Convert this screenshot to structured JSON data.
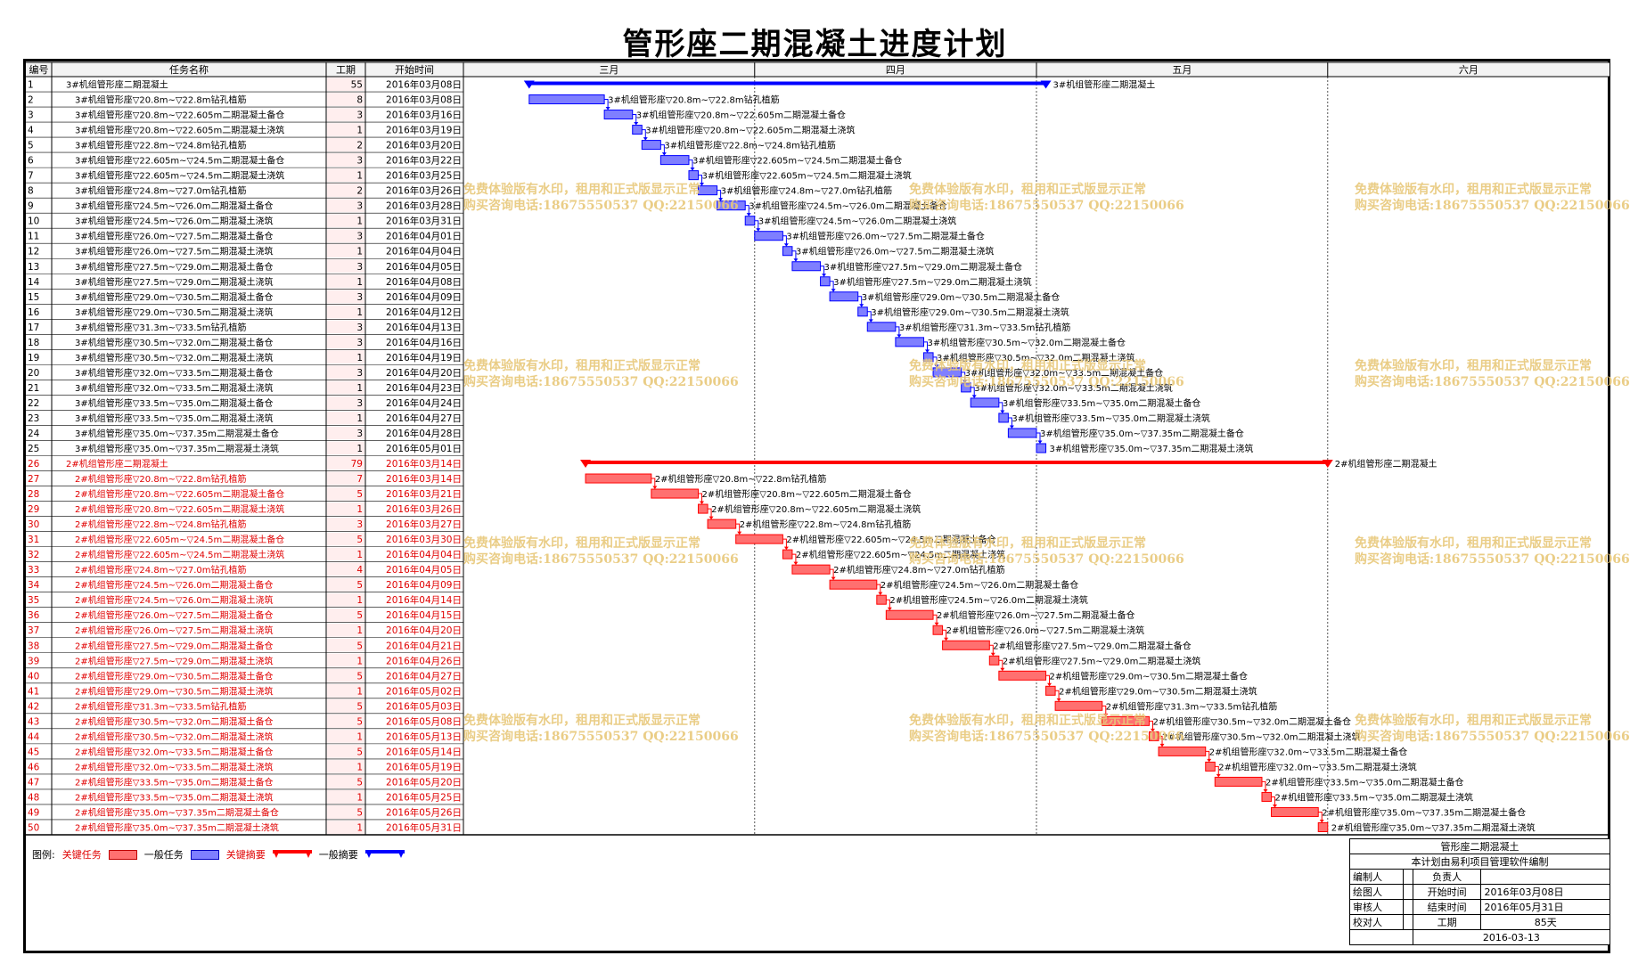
{
  "title": "管形座二期混凝土进度计划",
  "columns": {
    "id": "编号",
    "name": "任务名称",
    "duration": "工期",
    "start": "开始时间"
  },
  "months": [
    "三月",
    "四月",
    "五月",
    "六月"
  ],
  "colors": {
    "critical": "#ff0000",
    "critical_fill": "#ff7070",
    "normal": "#0000ff",
    "normal_fill": "#7f7fff",
    "watermark": "#e8c87a"
  },
  "chart_data": {
    "type": "gantt",
    "title": "管形座二期混凝土进度计划",
    "x_range": [
      "2016-03-01",
      "2016-06-30"
    ],
    "tasks": [
      {
        "id": "1",
        "name": "3#机组管形座二期混凝土",
        "duration": 55,
        "start": "2016年03月08日",
        "s": "2016-03-08",
        "type": "summary",
        "critical": false
      },
      {
        "id": "2",
        "name": "3#机组管形座▽20.8m~▽22.8m钻孔植筋",
        "duration": 8,
        "start": "2016年03月08日",
        "s": "2016-03-08",
        "type": "task",
        "critical": false
      },
      {
        "id": "3",
        "name": "3#机组管形座▽20.8m~▽22.605m二期混凝土备仓",
        "duration": 3,
        "start": "2016年03月16日",
        "s": "2016-03-16",
        "type": "task",
        "critical": false
      },
      {
        "id": "4",
        "name": "3#机组管形座▽20.8m~▽22.605m二期混凝土浇筑",
        "duration": 1,
        "start": "2016年03月19日",
        "s": "2016-03-19",
        "type": "task",
        "critical": false
      },
      {
        "id": "5",
        "name": "3#机组管形座▽22.8m~▽24.8m钻孔植筋",
        "duration": 2,
        "start": "2016年03月20日",
        "s": "2016-03-20",
        "type": "task",
        "critical": false
      },
      {
        "id": "6",
        "name": "3#机组管形座▽22.605m~▽24.5m二期混凝土备仓",
        "duration": 3,
        "start": "2016年03月22日",
        "s": "2016-03-22",
        "type": "task",
        "critical": false
      },
      {
        "id": "7",
        "name": "3#机组管形座▽22.605m~▽24.5m二期混凝土浇筑",
        "duration": 1,
        "start": "2016年03月25日",
        "s": "2016-03-25",
        "type": "task",
        "critical": false
      },
      {
        "id": "8",
        "name": "3#机组管形座▽24.8m~▽27.0m钻孔植筋",
        "duration": 2,
        "start": "2016年03月26日",
        "s": "2016-03-26",
        "type": "task",
        "critical": false
      },
      {
        "id": "9",
        "name": "3#机组管形座▽24.5m~▽26.0m二期混凝土备仓",
        "duration": 3,
        "start": "2016年03月28日",
        "s": "2016-03-28",
        "type": "task",
        "critical": false
      },
      {
        "id": "10",
        "name": "3#机组管形座▽24.5m~▽26.0m二期混凝土浇筑",
        "duration": 1,
        "start": "2016年03月31日",
        "s": "2016-03-31",
        "type": "task",
        "critical": false
      },
      {
        "id": "11",
        "name": "3#机组管形座▽26.0m~▽27.5m二期混凝土备仓",
        "duration": 3,
        "start": "2016年04月01日",
        "s": "2016-04-01",
        "type": "task",
        "critical": false
      },
      {
        "id": "12",
        "name": "3#机组管形座▽26.0m~▽27.5m二期混凝土浇筑",
        "duration": 1,
        "start": "2016年04月04日",
        "s": "2016-04-04",
        "type": "task",
        "critical": false
      },
      {
        "id": "13",
        "name": "3#机组管形座▽27.5m~▽29.0m二期混凝土备仓",
        "duration": 3,
        "start": "2016年04月05日",
        "s": "2016-04-05",
        "type": "task",
        "critical": false
      },
      {
        "id": "14",
        "name": "3#机组管形座▽27.5m~▽29.0m二期混凝土浇筑",
        "duration": 1,
        "start": "2016年04月08日",
        "s": "2016-04-08",
        "type": "task",
        "critical": false
      },
      {
        "id": "15",
        "name": "3#机组管形座▽29.0m~▽30.5m二期混凝土备仓",
        "duration": 3,
        "start": "2016年04月09日",
        "s": "2016-04-09",
        "type": "task",
        "critical": false
      },
      {
        "id": "16",
        "name": "3#机组管形座▽29.0m~▽30.5m二期混凝土浇筑",
        "duration": 1,
        "start": "2016年04月12日",
        "s": "2016-04-12",
        "type": "task",
        "critical": false
      },
      {
        "id": "17",
        "name": "3#机组管形座▽31.3m~▽33.5m钻孔植筋",
        "duration": 3,
        "start": "2016年04月13日",
        "s": "2016-04-13",
        "type": "task",
        "critical": false
      },
      {
        "id": "18",
        "name": "3#机组管形座▽30.5m~▽32.0m二期混凝土备仓",
        "duration": 3,
        "start": "2016年04月16日",
        "s": "2016-04-16",
        "type": "task",
        "critical": false
      },
      {
        "id": "19",
        "name": "3#机组管形座▽30.5m~▽32.0m二期混凝土浇筑",
        "duration": 1,
        "start": "2016年04月19日",
        "s": "2016-04-19",
        "type": "task",
        "critical": false
      },
      {
        "id": "20",
        "name": "3#机组管形座▽32.0m~▽33.5m二期混凝土备仓",
        "duration": 3,
        "start": "2016年04月20日",
        "s": "2016-04-20",
        "type": "task",
        "critical": false
      },
      {
        "id": "21",
        "name": "3#机组管形座▽32.0m~▽33.5m二期混凝土浇筑",
        "duration": 1,
        "start": "2016年04月23日",
        "s": "2016-04-23",
        "type": "task",
        "critical": false
      },
      {
        "id": "22",
        "name": "3#机组管形座▽33.5m~▽35.0m二期混凝土备仓",
        "duration": 3,
        "start": "2016年04月24日",
        "s": "2016-04-24",
        "type": "task",
        "critical": false
      },
      {
        "id": "23",
        "name": "3#机组管形座▽33.5m~▽35.0m二期混凝土浇筑",
        "duration": 1,
        "start": "2016年04月27日",
        "s": "2016-04-27",
        "type": "task",
        "critical": false
      },
      {
        "id": "24",
        "name": "3#机组管形座▽35.0m~▽37.35m二期混凝土备仓",
        "duration": 3,
        "start": "2016年04月28日",
        "s": "2016-04-28",
        "type": "task",
        "critical": false
      },
      {
        "id": "25",
        "name": "3#机组管形座▽35.0m~▽37.35m二期混凝土浇筑",
        "duration": 1,
        "start": "2016年05月01日",
        "s": "2016-05-01",
        "type": "task",
        "critical": false
      },
      {
        "id": "26",
        "name": "2#机组管形座二期混凝土",
        "duration": 79,
        "start": "2016年03月14日",
        "s": "2016-03-14",
        "type": "summary",
        "critical": true
      },
      {
        "id": "27",
        "name": "2#机组管形座▽20.8m~▽22.8m钻孔植筋",
        "duration": 7,
        "start": "2016年03月14日",
        "s": "2016-03-14",
        "type": "task",
        "critical": true
      },
      {
        "id": "28",
        "name": "2#机组管形座▽20.8m~▽22.605m二期混凝土备仓",
        "duration": 5,
        "start": "2016年03月21日",
        "s": "2016-03-21",
        "type": "task",
        "critical": true
      },
      {
        "id": "29",
        "name": "2#机组管形座▽20.8m~▽22.605m二期混凝土浇筑",
        "duration": 1,
        "start": "2016年03月26日",
        "s": "2016-03-26",
        "type": "task",
        "critical": true
      },
      {
        "id": "30",
        "name": "2#机组管形座▽22.8m~▽24.8m钻孔植筋",
        "duration": 3,
        "start": "2016年03月27日",
        "s": "2016-03-27",
        "type": "task",
        "critical": true
      },
      {
        "id": "31",
        "name": "2#机组管形座▽22.605m~▽24.5m二期混凝土备仓",
        "duration": 5,
        "start": "2016年03月30日",
        "s": "2016-03-30",
        "type": "task",
        "critical": true
      },
      {
        "id": "32",
        "name": "2#机组管形座▽22.605m~▽24.5m二期混凝土浇筑",
        "duration": 1,
        "start": "2016年04月04日",
        "s": "2016-04-04",
        "type": "task",
        "critical": true
      },
      {
        "id": "33",
        "name": "2#机组管形座▽24.8m~▽27.0m钻孔植筋",
        "duration": 4,
        "start": "2016年04月05日",
        "s": "2016-04-05",
        "type": "task",
        "critical": true
      },
      {
        "id": "34",
        "name": "2#机组管形座▽24.5m~▽26.0m二期混凝土备仓",
        "duration": 5,
        "start": "2016年04月09日",
        "s": "2016-04-09",
        "type": "task",
        "critical": true
      },
      {
        "id": "35",
        "name": "2#机组管形座▽24.5m~▽26.0m二期混凝土浇筑",
        "duration": 1,
        "start": "2016年04月14日",
        "s": "2016-04-14",
        "type": "task",
        "critical": true
      },
      {
        "id": "36",
        "name": "2#机组管形座▽26.0m~▽27.5m二期混凝土备仓",
        "duration": 5,
        "start": "2016年04月15日",
        "s": "2016-04-15",
        "type": "task",
        "critical": true
      },
      {
        "id": "37",
        "name": "2#机组管形座▽26.0m~▽27.5m二期混凝土浇筑",
        "duration": 1,
        "start": "2016年04月20日",
        "s": "2016-04-20",
        "type": "task",
        "critical": true
      },
      {
        "id": "38",
        "name": "2#机组管形座▽27.5m~▽29.0m二期混凝土备仓",
        "duration": 5,
        "start": "2016年04月21日",
        "s": "2016-04-21",
        "type": "task",
        "critical": true
      },
      {
        "id": "39",
        "name": "2#机组管形座▽27.5m~▽29.0m二期混凝土浇筑",
        "duration": 1,
        "start": "2016年04月26日",
        "s": "2016-04-26",
        "type": "task",
        "critical": true
      },
      {
        "id": "40",
        "name": "2#机组管形座▽29.0m~▽30.5m二期混凝土备仓",
        "duration": 5,
        "start": "2016年04月27日",
        "s": "2016-04-27",
        "type": "task",
        "critical": true
      },
      {
        "id": "41",
        "name": "2#机组管形座▽29.0m~▽30.5m二期混凝土浇筑",
        "duration": 1,
        "start": "2016年05月02日",
        "s": "2016-05-02",
        "type": "task",
        "critical": true
      },
      {
        "id": "42",
        "name": "2#机组管形座▽31.3m~▽33.5m钻孔植筋",
        "duration": 5,
        "start": "2016年05月03日",
        "s": "2016-05-03",
        "type": "task",
        "critical": true
      },
      {
        "id": "43",
        "name": "2#机组管形座▽30.5m~▽32.0m二期混凝土备仓",
        "duration": 5,
        "start": "2016年05月08日",
        "s": "2016-05-08",
        "type": "task",
        "critical": true
      },
      {
        "id": "44",
        "name": "2#机组管形座▽30.5m~▽32.0m二期混凝土浇筑",
        "duration": 1,
        "start": "2016年05月13日",
        "s": "2016-05-13",
        "type": "task",
        "critical": true
      },
      {
        "id": "45",
        "name": "2#机组管形座▽32.0m~▽33.5m二期混凝土备仓",
        "duration": 5,
        "start": "2016年05月14日",
        "s": "2016-05-14",
        "type": "task",
        "critical": true
      },
      {
        "id": "46",
        "name": "2#机组管形座▽32.0m~▽33.5m二期混凝土浇筑",
        "duration": 1,
        "start": "2016年05月19日",
        "s": "2016-05-19",
        "type": "task",
        "critical": true
      },
      {
        "id": "47",
        "name": "2#机组管形座▽33.5m~▽35.0m二期混凝土备仓",
        "duration": 5,
        "start": "2016年05月20日",
        "s": "2016-05-20",
        "type": "task",
        "critical": true
      },
      {
        "id": "48",
        "name": "2#机组管形座▽33.5m~▽35.0m二期混凝土浇筑",
        "duration": 1,
        "start": "2016年05月25日",
        "s": "2016-05-25",
        "type": "task",
        "critical": true
      },
      {
        "id": "49",
        "name": "2#机组管形座▽35.0m~▽37.35m二期混凝土备仓",
        "duration": 5,
        "start": "2016年05月26日",
        "s": "2016-05-26",
        "type": "task",
        "critical": true
      },
      {
        "id": "50",
        "name": "2#机组管形座▽35.0m~▽37.35m二期混凝土浇筑",
        "duration": 1,
        "start": "2016年05月31日",
        "s": "2016-05-31",
        "type": "task",
        "critical": true
      }
    ]
  },
  "watermark": {
    "line1": "免费体验版有水印，租用和正式版显示正常",
    "line2": "购买咨询电话:18675550537 QQ:22150066"
  },
  "legend": {
    "label": "图例:",
    "critical_task": "关键任务",
    "normal_task": "一般任务",
    "critical_summary": "关键摘要",
    "normal_summary": "一般摘要"
  },
  "info": {
    "project_name": "管形座二期混凝土",
    "software_note": "本计划由易利项目管理软件编制",
    "preparer_label": "编制人",
    "responsible_label": "负责人",
    "drafter_label": "绘图人",
    "start_label": "开始时间",
    "start_value": "2016年03月08日",
    "reviewer_label": "审核人",
    "end_label": "结束时间",
    "end_value": "2016年05月31日",
    "checker_label": "校对人",
    "duration_label": "工期",
    "duration_value": "85天",
    "date": "2016-03-13"
  }
}
